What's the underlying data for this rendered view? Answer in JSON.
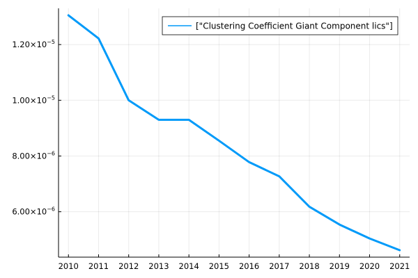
{
  "chart_data": {
    "type": "line",
    "title": "",
    "xlabel": "",
    "ylabel": "",
    "x": [
      2010,
      2011,
      2012,
      2013,
      2014,
      2015,
      2016,
      2017,
      2018,
      2019,
      2020,
      2021
    ],
    "series": [
      {
        "name": "[\"Clustering Coefficient Giant Component lics\"]",
        "color": "#009af9",
        "values": [
          1.305e-05,
          1.222e-05,
          1e-05,
          9.3e-06,
          9.3e-06,
          8.55e-06,
          7.78e-06,
          7.27e-06,
          6.18e-06,
          5.54e-06,
          5.04e-06,
          4.62e-06
        ]
      }
    ],
    "xticks": [
      2010,
      2011,
      2012,
      2013,
      2014,
      2015,
      2016,
      2017,
      2018,
      2019,
      2020,
      2021
    ],
    "yticks": [
      {
        "value": 1.2e-05,
        "mantissa": "1.20×10",
        "exp": "−5"
      },
      {
        "value": 1e-05,
        "mantissa": "1.00×10",
        "exp": "−5"
      },
      {
        "value": 8e-06,
        "mantissa": "8.00×10",
        "exp": "−6"
      },
      {
        "value": 6e-06,
        "mantissa": "6.00×10",
        "exp": "−6"
      }
    ],
    "xlim": [
      2009.67,
      2021.33
    ],
    "ylim": [
      4.37e-06,
      1.33e-05
    ],
    "grid": true,
    "legend_position": "top-right"
  }
}
